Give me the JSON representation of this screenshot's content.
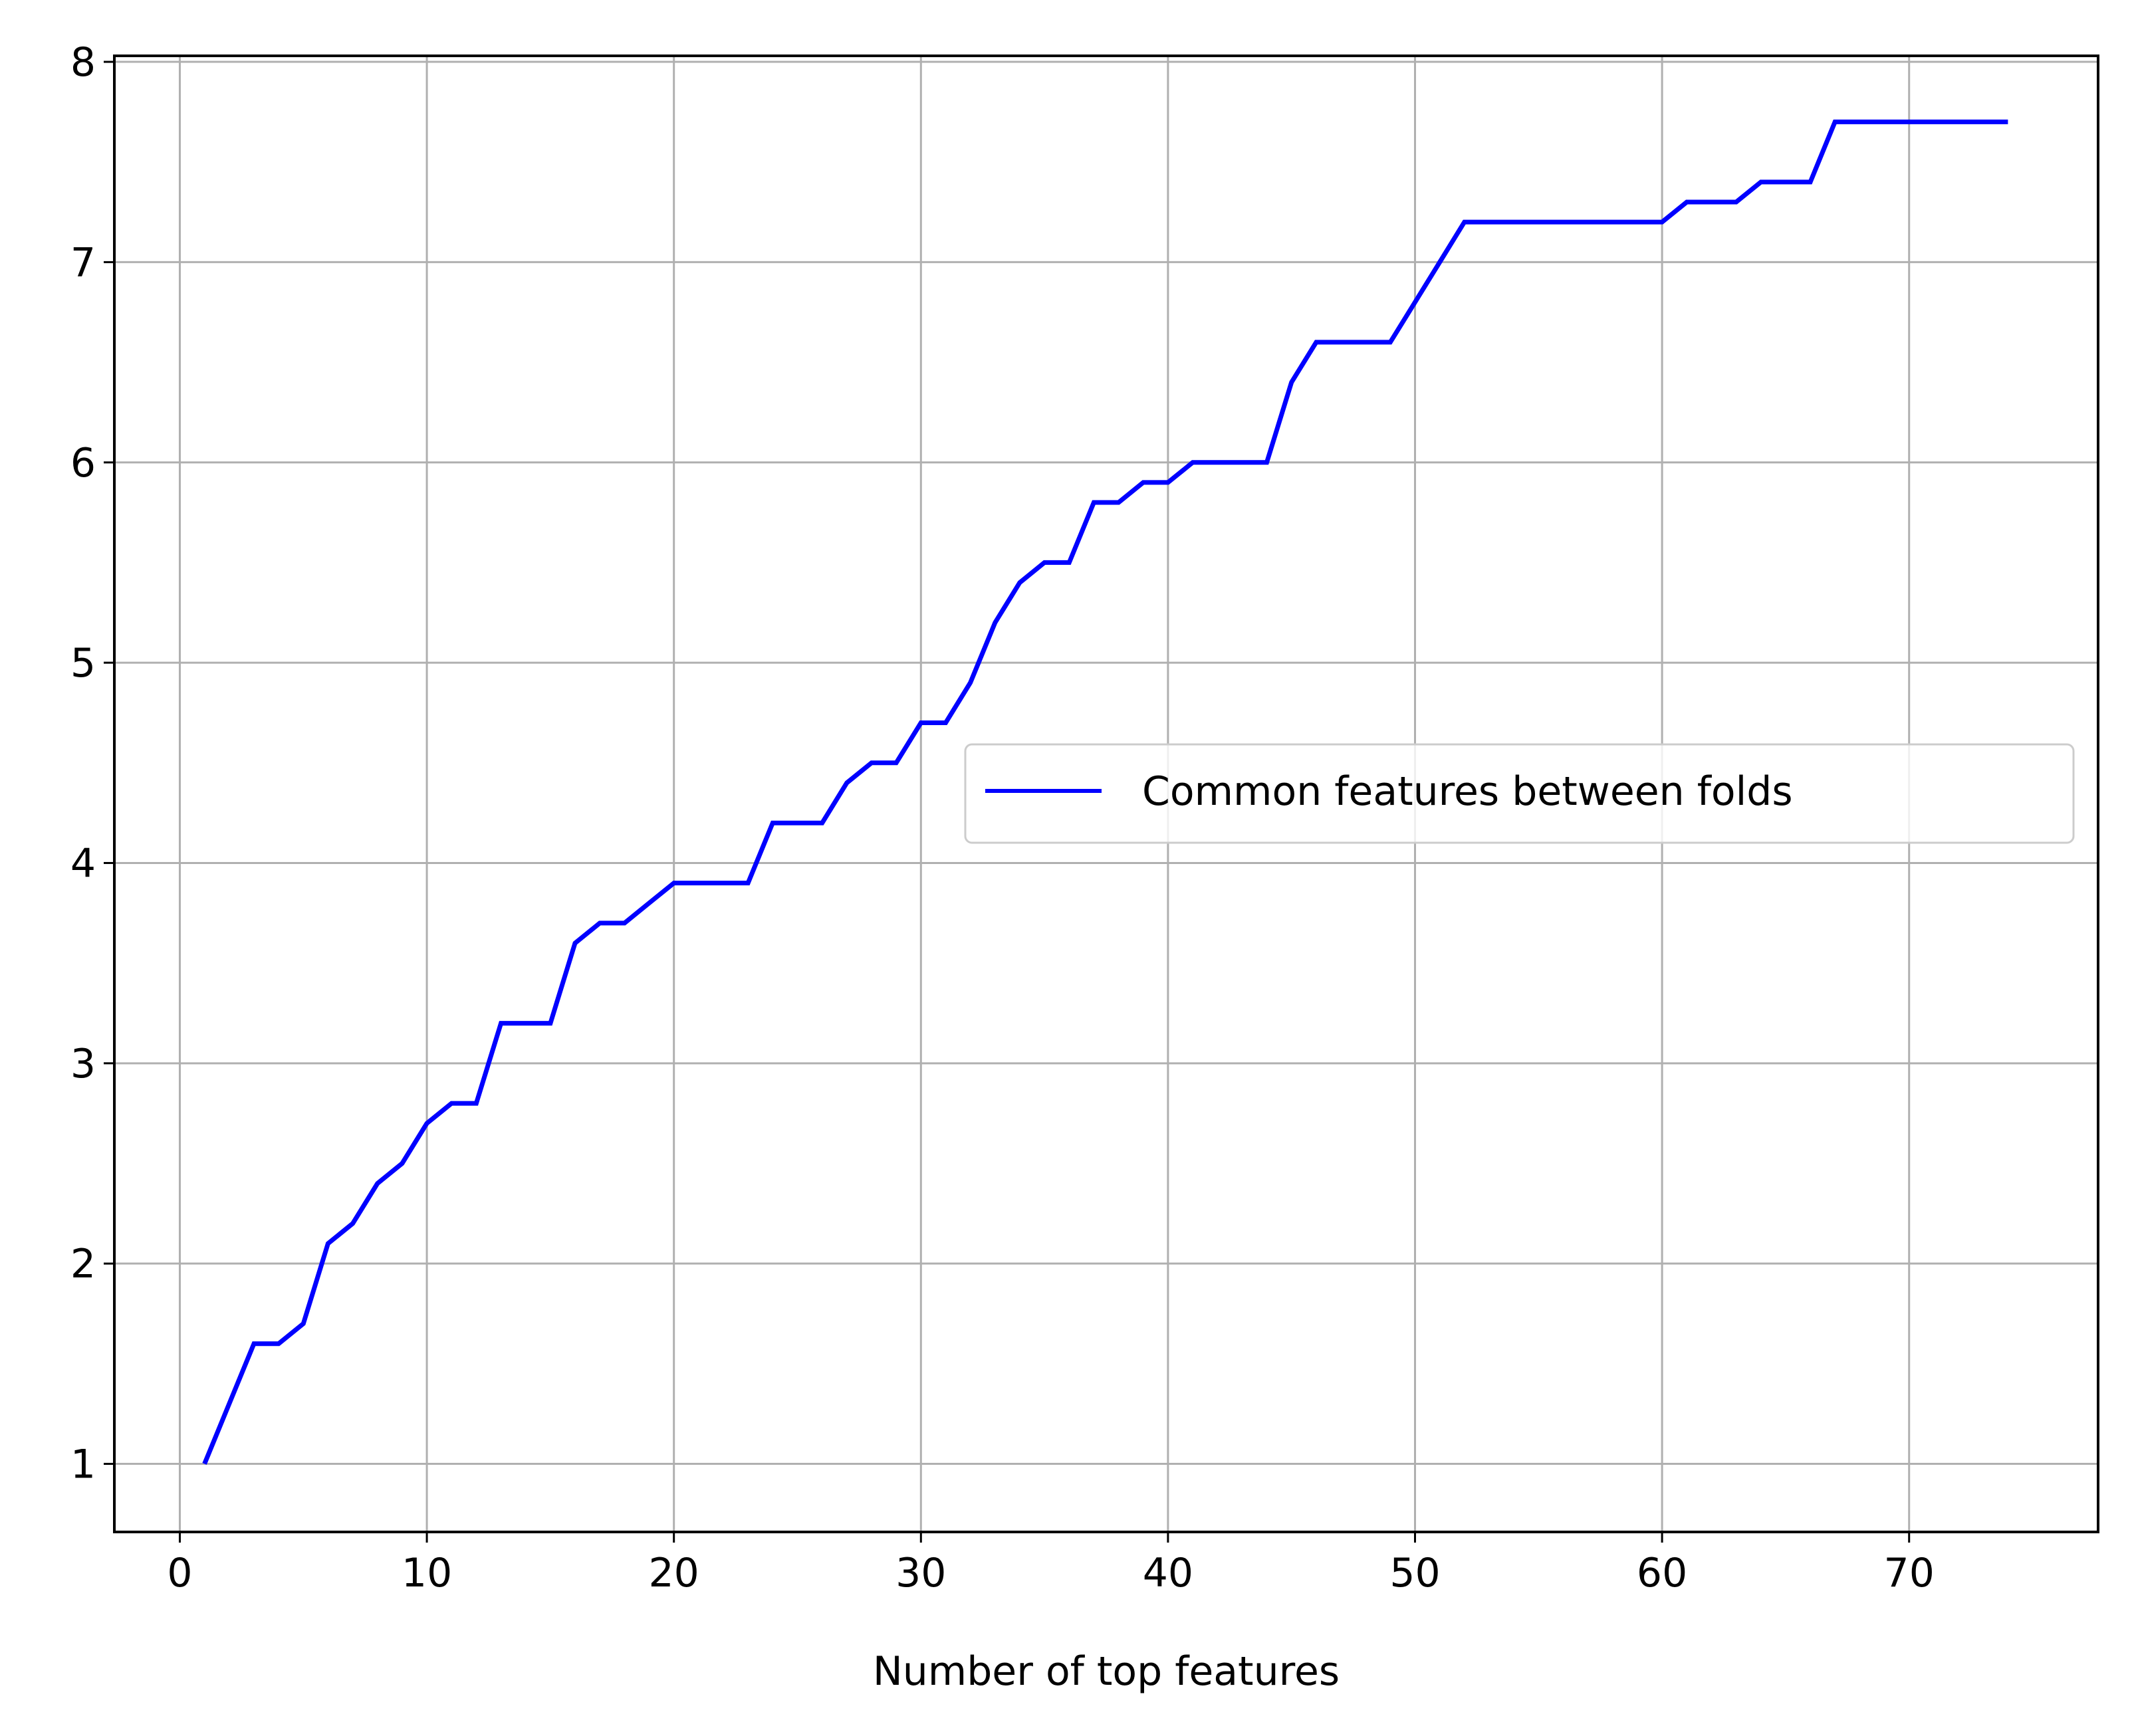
{
  "chart_data": {
    "type": "line",
    "title": "",
    "xlabel": "Number of top features",
    "ylabel": "",
    "xlim": [
      -2.65,
      77.65
    ],
    "ylim": [
      0.66,
      8.03
    ],
    "xticks": [
      0,
      10,
      20,
      30,
      40,
      50,
      60,
      70
    ],
    "yticks": [
      1,
      2,
      3,
      4,
      5,
      6,
      7,
      8
    ],
    "grid": true,
    "legend_position": "center-right",
    "series": [
      {
        "name": "Common features between folds",
        "color": "#0000ff",
        "x": [
          1,
          2,
          3,
          4,
          5,
          6,
          7,
          8,
          9,
          10,
          11,
          12,
          13,
          14,
          15,
          16,
          17,
          18,
          19,
          20,
          21,
          22,
          23,
          24,
          25,
          26,
          27,
          28,
          29,
          30,
          31,
          32,
          33,
          34,
          35,
          36,
          37,
          38,
          39,
          40,
          41,
          42,
          43,
          44,
          45,
          46,
          47,
          48,
          49,
          50,
          51,
          52,
          53,
          54,
          55,
          56,
          57,
          58,
          59,
          60,
          61,
          62,
          63,
          64,
          65,
          66,
          67,
          68,
          69,
          70,
          71,
          72,
          73,
          74
        ],
        "y": [
          1.0,
          1.3,
          1.6,
          1.6,
          1.7,
          2.1,
          2.2,
          2.4,
          2.5,
          2.7,
          2.8,
          2.8,
          3.2,
          3.2,
          3.2,
          3.6,
          3.7,
          3.7,
          3.8,
          3.9,
          3.9,
          3.9,
          3.9,
          4.2,
          4.2,
          4.2,
          4.4,
          4.5,
          4.5,
          4.7,
          4.7,
          4.9,
          5.2,
          5.4,
          5.5,
          5.5,
          5.8,
          5.8,
          5.9,
          5.9,
          6.0,
          6.0,
          6.0,
          6.0,
          6.4,
          6.6,
          6.6,
          6.6,
          6.6,
          6.8,
          7.0,
          7.2,
          7.2,
          7.2,
          7.2,
          7.2,
          7.2,
          7.2,
          7.2,
          7.2,
          7.3,
          7.3,
          7.3,
          7.4,
          7.4,
          7.4,
          7.7,
          7.7,
          7.7,
          7.7,
          7.7,
          7.7,
          7.7,
          7.7
        ]
      }
    ]
  }
}
